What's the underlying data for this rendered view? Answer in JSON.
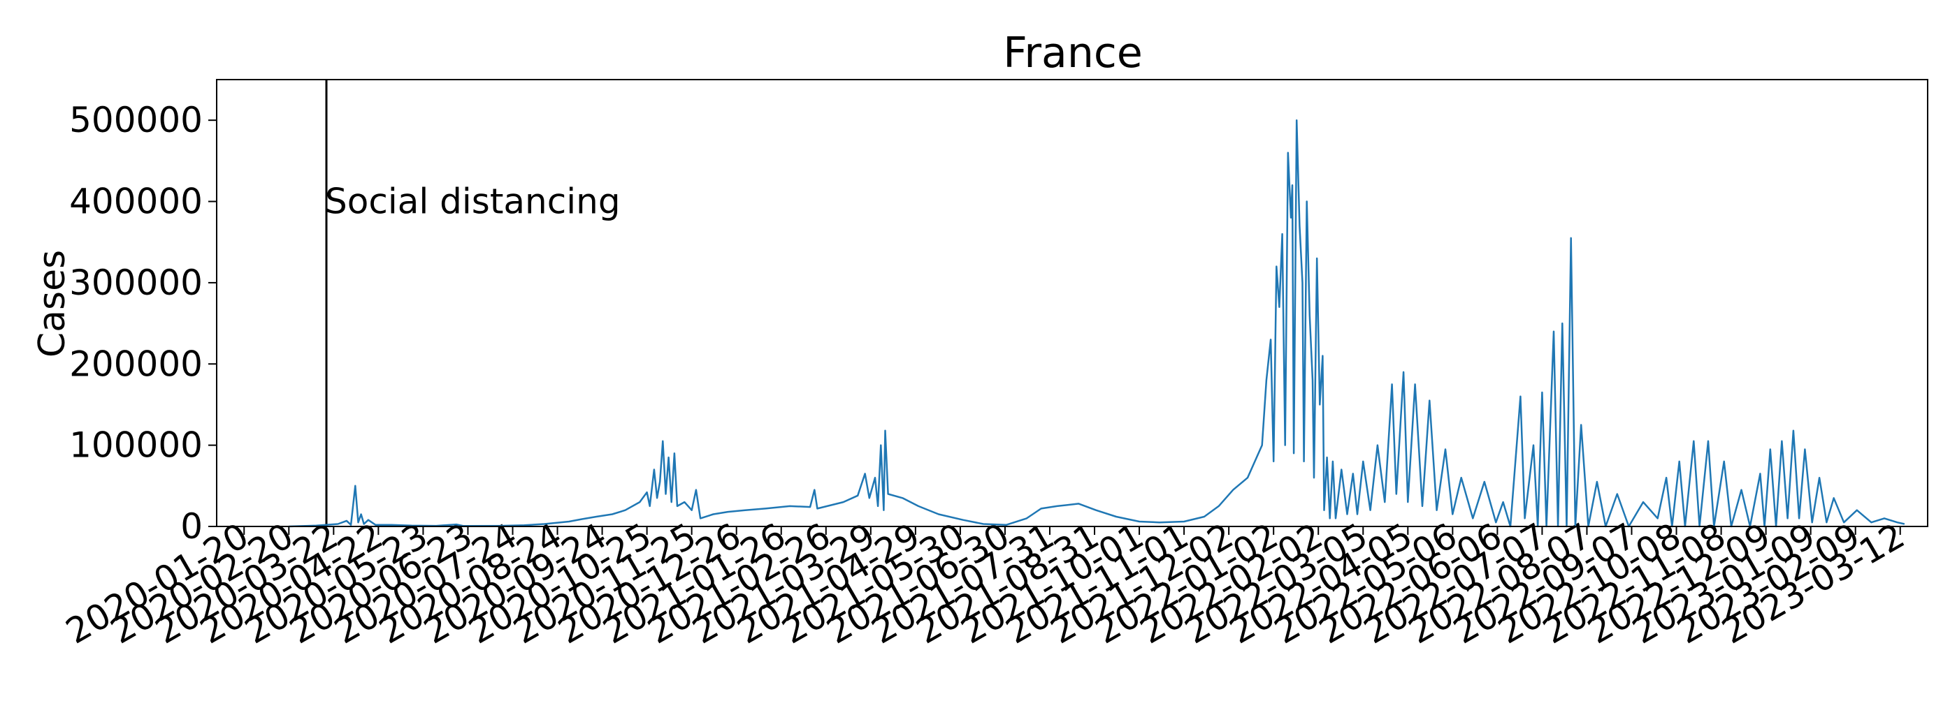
{
  "chart_data": {
    "type": "line",
    "title": "France",
    "xlabel": "",
    "ylabel": "Cases",
    "x_axis_type": "date",
    "xlim": [
      "2020-01-01",
      "2023-03-31"
    ],
    "ylim": [
      0,
      550000
    ],
    "yticks": [
      0,
      100000,
      200000,
      300000,
      400000,
      500000
    ],
    "yticklabels": [
      "0",
      "100000",
      "200000",
      "300000",
      "400000",
      "500000"
    ],
    "xticks": [
      "2020-01-20",
      "2020-02-20",
      "2020-03-22",
      "2020-04-22",
      "2020-05-23",
      "2020-06-23",
      "2020-07-24",
      "2020-08-24",
      "2020-09-24",
      "2020-10-25",
      "2020-11-25",
      "2020-12-26",
      "2021-01-26",
      "2021-02-26",
      "2021-03-29",
      "2021-04-29",
      "2021-05-30",
      "2021-06-30",
      "2021-07-31",
      "2021-08-31",
      "2021-10-01",
      "2021-11-01",
      "2021-12-02",
      "2022-01-02",
      "2022-02-02",
      "2022-03-05",
      "2022-04-05",
      "2022-05-06",
      "2022-06-06",
      "2022-07-07",
      "2022-08-07",
      "2022-09-07",
      "2022-10-08",
      "2022-11-08",
      "2022-12-09",
      "2023-01-09",
      "2023-02-09",
      "2023-03-12"
    ],
    "grid": false,
    "legend": false,
    "line_color": "#1f77b4",
    "annotations": [
      {
        "type": "vline",
        "x": "2020-03-17",
        "label": "Social distancing",
        "color": "#000000"
      }
    ],
    "series": [
      {
        "points": [
          [
            "2020-02-20",
            0
          ],
          [
            "2020-03-10",
            1000
          ],
          [
            "2020-03-25",
            3000
          ],
          [
            "2020-03-31",
            7000
          ],
          [
            "2020-04-03",
            2000
          ],
          [
            "2020-04-06",
            50000
          ],
          [
            "2020-04-08",
            5000
          ],
          [
            "2020-04-10",
            15000
          ],
          [
            "2020-04-12",
            3000
          ],
          [
            "2020-04-15",
            8000
          ],
          [
            "2020-04-20",
            2000
          ],
          [
            "2020-05-01",
            2000
          ],
          [
            "2020-05-15",
            1000
          ],
          [
            "2020-06-01",
            800
          ],
          [
            "2020-06-15",
            2500
          ],
          [
            "2020-06-20",
            600
          ],
          [
            "2020-07-15",
            800
          ],
          [
            "2020-08-01",
            1500
          ],
          [
            "2020-08-15",
            3000
          ],
          [
            "2020-09-01",
            6000
          ],
          [
            "2020-09-10",
            9000
          ],
          [
            "2020-09-20",
            12000
          ],
          [
            "2020-10-01",
            15000
          ],
          [
            "2020-10-10",
            20000
          ],
          [
            "2020-10-20",
            30000
          ],
          [
            "2020-10-25",
            42000
          ],
          [
            "2020-10-27",
            25000
          ],
          [
            "2020-10-30",
            70000
          ],
          [
            "2020-11-01",
            35000
          ],
          [
            "2020-11-03",
            55000
          ],
          [
            "2020-11-05",
            105000
          ],
          [
            "2020-11-07",
            40000
          ],
          [
            "2020-11-09",
            85000
          ],
          [
            "2020-11-11",
            30000
          ],
          [
            "2020-11-13",
            90000
          ],
          [
            "2020-11-15",
            25000
          ],
          [
            "2020-11-20",
            30000
          ],
          [
            "2020-11-25",
            20000
          ],
          [
            "2020-11-28",
            45000
          ],
          [
            "2020-12-01",
            10000
          ],
          [
            "2020-12-10",
            15000
          ],
          [
            "2020-12-20",
            18000
          ],
          [
            "2021-01-01",
            20000
          ],
          [
            "2021-01-15",
            22000
          ],
          [
            "2021-02-01",
            25000
          ],
          [
            "2021-02-15",
            24000
          ],
          [
            "2021-02-18",
            45000
          ],
          [
            "2021-02-20",
            22000
          ],
          [
            "2021-03-10",
            30000
          ],
          [
            "2021-03-20",
            38000
          ],
          [
            "2021-03-25",
            65000
          ],
          [
            "2021-03-28",
            35000
          ],
          [
            "2021-04-01",
            60000
          ],
          [
            "2021-04-03",
            25000
          ],
          [
            "2021-04-05",
            100000
          ],
          [
            "2021-04-07",
            20000
          ],
          [
            "2021-04-08",
            118000
          ],
          [
            "2021-04-10",
            40000
          ],
          [
            "2021-04-20",
            35000
          ],
          [
            "2021-05-01",
            25000
          ],
          [
            "2021-05-15",
            15000
          ],
          [
            "2021-06-01",
            8000
          ],
          [
            "2021-06-15",
            3000
          ],
          [
            "2021-07-01",
            2000
          ],
          [
            "2021-07-15",
            10000
          ],
          [
            "2021-07-25",
            22000
          ],
          [
            "2021-08-05",
            25000
          ],
          [
            "2021-08-20",
            28000
          ],
          [
            "2021-09-01",
            20000
          ],
          [
            "2021-09-15",
            12000
          ],
          [
            "2021-10-01",
            6000
          ],
          [
            "2021-10-15",
            5000
          ],
          [
            "2021-11-01",
            6000
          ],
          [
            "2021-11-15",
            12000
          ],
          [
            "2021-11-25",
            25000
          ],
          [
            "2021-12-05",
            45000
          ],
          [
            "2021-12-15",
            60000
          ],
          [
            "2021-12-25",
            100000
          ],
          [
            "2021-12-28",
            180000
          ],
          [
            "2021-12-31",
            230000
          ],
          [
            "2022-01-02",
            80000
          ],
          [
            "2022-01-04",
            320000
          ],
          [
            "2022-01-06",
            270000
          ],
          [
            "2022-01-08",
            360000
          ],
          [
            "2022-01-10",
            100000
          ],
          [
            "2022-01-12",
            460000
          ],
          [
            "2022-01-14",
            380000
          ],
          [
            "2022-01-15",
            420000
          ],
          [
            "2022-01-16",
            90000
          ],
          [
            "2022-01-18",
            500000
          ],
          [
            "2022-01-20",
            370000
          ],
          [
            "2022-01-22",
            300000
          ],
          [
            "2022-01-23",
            80000
          ],
          [
            "2022-01-25",
            400000
          ],
          [
            "2022-01-27",
            260000
          ],
          [
            "2022-01-29",
            180000
          ],
          [
            "2022-01-30",
            60000
          ],
          [
            "2022-02-01",
            330000
          ],
          [
            "2022-02-03",
            150000
          ],
          [
            "2022-02-05",
            210000
          ],
          [
            "2022-02-06",
            20000
          ],
          [
            "2022-02-08",
            85000
          ],
          [
            "2022-02-10",
            10000
          ],
          [
            "2022-02-12",
            80000
          ],
          [
            "2022-02-14",
            10000
          ],
          [
            "2022-02-18",
            70000
          ],
          [
            "2022-02-22",
            15000
          ],
          [
            "2022-02-26",
            65000
          ],
          [
            "2022-03-01",
            15000
          ],
          [
            "2022-03-05",
            80000
          ],
          [
            "2022-03-10",
            20000
          ],
          [
            "2022-03-15",
            100000
          ],
          [
            "2022-03-20",
            30000
          ],
          [
            "2022-03-25",
            175000
          ],
          [
            "2022-03-28",
            40000
          ],
          [
            "2022-04-02",
            190000
          ],
          [
            "2022-04-05",
            30000
          ],
          [
            "2022-04-10",
            175000
          ],
          [
            "2022-04-15",
            25000
          ],
          [
            "2022-04-20",
            155000
          ],
          [
            "2022-04-25",
            20000
          ],
          [
            "2022-05-01",
            95000
          ],
          [
            "2022-05-06",
            15000
          ],
          [
            "2022-05-12",
            60000
          ],
          [
            "2022-05-20",
            10000
          ],
          [
            "2022-05-28",
            55000
          ],
          [
            "2022-06-05",
            5000
          ],
          [
            "2022-06-10",
            30000
          ],
          [
            "2022-06-15",
            0
          ],
          [
            "2022-06-22",
            160000
          ],
          [
            "2022-06-25",
            10000
          ],
          [
            "2022-07-01",
            100000
          ],
          [
            "2022-07-04",
            0
          ],
          [
            "2022-07-07",
            165000
          ],
          [
            "2022-07-10",
            0
          ],
          [
            "2022-07-15",
            240000
          ],
          [
            "2022-07-18",
            0
          ],
          [
            "2022-07-21",
            250000
          ],
          [
            "2022-07-24",
            0
          ],
          [
            "2022-07-27",
            355000
          ],
          [
            "2022-07-30",
            0
          ],
          [
            "2022-08-03",
            125000
          ],
          [
            "2022-08-08",
            0
          ],
          [
            "2022-08-14",
            55000
          ],
          [
            "2022-08-20",
            0
          ],
          [
            "2022-08-28",
            40000
          ],
          [
            "2022-09-05",
            0
          ],
          [
            "2022-09-15",
            30000
          ],
          [
            "2022-09-25",
            10000
          ],
          [
            "2022-10-01",
            60000
          ],
          [
            "2022-10-05",
            0
          ],
          [
            "2022-10-10",
            80000
          ],
          [
            "2022-10-14",
            0
          ],
          [
            "2022-10-20",
            105000
          ],
          [
            "2022-10-24",
            0
          ],
          [
            "2022-10-30",
            105000
          ],
          [
            "2022-11-03",
            0
          ],
          [
            "2022-11-10",
            80000
          ],
          [
            "2022-11-15",
            0
          ],
          [
            "2022-11-22",
            45000
          ],
          [
            "2022-11-28",
            0
          ],
          [
            "2022-12-05",
            65000
          ],
          [
            "2022-12-08",
            0
          ],
          [
            "2022-12-12",
            95000
          ],
          [
            "2022-12-16",
            0
          ],
          [
            "2022-12-20",
            105000
          ],
          [
            "2022-12-24",
            10000
          ],
          [
            "2022-12-28",
            118000
          ],
          [
            "2023-01-01",
            10000
          ],
          [
            "2023-01-05",
            95000
          ],
          [
            "2023-01-10",
            5000
          ],
          [
            "2023-01-15",
            60000
          ],
          [
            "2023-01-20",
            5000
          ],
          [
            "2023-01-25",
            35000
          ],
          [
            "2023-02-01",
            5000
          ],
          [
            "2023-02-10",
            20000
          ],
          [
            "2023-02-20",
            5000
          ],
          [
            "2023-03-01",
            10000
          ],
          [
            "2023-03-10",
            5000
          ],
          [
            "2023-03-15",
            3000
          ]
        ]
      }
    ]
  }
}
